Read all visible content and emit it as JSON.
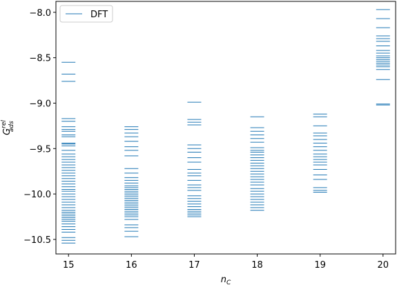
{
  "chart_data": {
    "type": "scatter",
    "marker": "hline",
    "xlabel_main": "n",
    "xlabel_sub": "C",
    "ylabel_main": "G",
    "ylabel_sup": "rel",
    "ylabel_sub": "ads",
    "xlim": [
      14.8,
      20.2
    ],
    "ylim": [
      -10.66,
      -7.88
    ],
    "xticks": [
      15,
      16,
      17,
      18,
      19,
      20
    ],
    "yticks": [
      -8.0,
      -8.5,
      -9.0,
      -9.5,
      -10.0,
      -10.5
    ],
    "ytick_labels": [
      "−8.0",
      "−8.5",
      "−9.0",
      "−9.5",
      "−10.0",
      "−10.5"
    ],
    "grid": false,
    "legend_position": "top-left",
    "color": "#1f77b4",
    "series": [
      {
        "name": "DFT",
        "points": [
          {
            "x": 15,
            "values": [
              -8.55,
              -8.68,
              -8.76,
              -9.17,
              -9.2,
              -9.26,
              -9.29,
              -9.31,
              -9.35,
              -9.37,
              -9.44,
              -9.45,
              -9.47,
              -9.52,
              -9.56,
              -9.59,
              -9.62,
              -9.65,
              -9.68,
              -9.71,
              -9.74,
              -9.77,
              -9.8,
              -9.83,
              -9.86,
              -9.89,
              -9.92,
              -9.95,
              -9.97,
              -10.0,
              -10.03,
              -10.06,
              -10.09,
              -10.12,
              -10.15,
              -10.18,
              -10.2,
              -10.22,
              -10.24,
              -10.26,
              -10.28,
              -10.3,
              -10.33,
              -10.36,
              -10.39,
              -10.42,
              -10.48,
              -10.51,
              -10.54
            ]
          },
          {
            "x": 16,
            "values": [
              -9.26,
              -9.29,
              -9.33,
              -9.37,
              -9.42,
              -9.48,
              -9.52,
              -9.58,
              -9.72,
              -9.77,
              -9.82,
              -9.85,
              -9.88,
              -9.91,
              -9.93,
              -9.95,
              -9.97,
              -9.99,
              -10.01,
              -10.03,
              -10.05,
              -10.07,
              -10.09,
              -10.11,
              -10.13,
              -10.15,
              -10.17,
              -10.19,
              -10.21,
              -10.23,
              -10.25,
              -10.28,
              -10.34,
              -10.37,
              -10.41,
              -10.47
            ]
          },
          {
            "x": 17,
            "values": [
              -8.99,
              -9.18,
              -9.21,
              -9.24,
              -9.46,
              -9.5,
              -9.54,
              -9.6,
              -9.65,
              -9.73,
              -9.77,
              -9.8,
              -9.85,
              -9.9,
              -9.93,
              -9.96,
              -10.02,
              -10.05,
              -10.08,
              -10.11,
              -10.14,
              -10.17,
              -10.19,
              -10.21,
              -10.23,
              -10.25
            ]
          },
          {
            "x": 18,
            "values": [
              -9.15,
              -9.27,
              -9.31,
              -9.35,
              -9.39,
              -9.43,
              -9.49,
              -9.52,
              -9.54,
              -9.57,
              -9.6,
              -9.63,
              -9.66,
              -9.69,
              -9.72,
              -9.75,
              -9.78,
              -9.81,
              -9.84,
              -9.87,
              -9.9,
              -9.94,
              -9.97,
              -10.0,
              -10.03,
              -10.06,
              -10.09,
              -10.12,
              -10.15,
              -10.18
            ]
          },
          {
            "x": 19,
            "values": [
              -9.12,
              -9.15,
              -9.25,
              -9.33,
              -9.36,
              -9.4,
              -9.44,
              -9.48,
              -9.52,
              -9.56,
              -9.59,
              -9.62,
              -9.65,
              -9.68,
              -9.73,
              -9.79,
              -9.84,
              -9.93,
              -9.96,
              -9.98
            ]
          },
          {
            "x": 20,
            "values": [
              -7.97,
              -8.07,
              -8.17,
              -8.26,
              -8.29,
              -8.32,
              -8.37,
              -8.42,
              -8.45,
              -8.48,
              -8.5,
              -8.52,
              -8.54,
              -8.56,
              -8.58,
              -8.6,
              -8.63,
              -8.74,
              -9.01,
              -9.02
            ]
          }
        ]
      }
    ]
  }
}
